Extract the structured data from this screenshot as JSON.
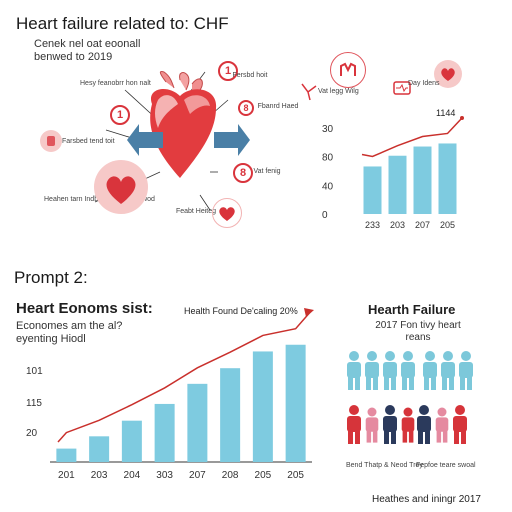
{
  "top": {
    "title": "Heart failure related to: CHF",
    "subtitle_line1": "Cenek nel oat eoonall",
    "subtitle_line2": "benwed to 2019",
    "labels": {
      "a": "Hesy feanobrr hon nalt",
      "b": "Fersbd hoit",
      "c": "Fbanrd Haed",
      "d": "Farsbed tend toit",
      "e": "Vat fenig",
      "f": "Heahen tarn Indbe an ut wug Fiwod",
      "g": "Feabt Heiteg"
    },
    "badges": [
      "1",
      "1",
      "8",
      "8"
    ],
    "icon_labels": {
      "left": "Vat legg Wilg",
      "right": "Day Idens"
    },
    "chart_data": {
      "type": "bar",
      "categories": [
        "233",
        "203",
        "207",
        "205"
      ],
      "values": [
        62,
        76,
        88,
        92
      ],
      "ylim": [
        0,
        120
      ],
      "ytick_labels": [
        "0",
        "40",
        "80",
        "30"
      ],
      "annotation": "1144",
      "trend_color": "#c9302c",
      "bar_color": "#7ecbe0"
    }
  },
  "prompt_label": "Prompt 2:",
  "bottom_left": {
    "title": "Heart Eonoms sist:",
    "sub_line1": "Economes am the al?",
    "sub_line2": "eyenting Hiodl",
    "chart_title": "Health Found De'caling 20%",
    "chart_data": {
      "type": "bar",
      "categories": [
        "201",
        "203",
        "204",
        "303",
        "207",
        "208",
        "205",
        "205"
      ],
      "values": [
        12,
        23,
        37,
        52,
        70,
        84,
        99,
        105
      ],
      "ylim": [
        0,
        120
      ],
      "ytick_labels": [
        "20",
        "115",
        "101"
      ],
      "trend_color": "#c9302c",
      "bar_color": "#7ecbe0"
    }
  },
  "bottom_right": {
    "title": "Hearth Failure",
    "sub_line1": "2017 Fon tivy heart",
    "sub_line2": "reans",
    "caption_left": "Bend Thatp & Neod Troy",
    "caption_right": "Fepfoe teare swoal",
    "footer": "Heathes and iningr 2017",
    "colors": {
      "teal": "#7cc8da",
      "red": "#d6343a",
      "pink": "#e58aa0",
      "navy": "#2b3a5c"
    }
  }
}
